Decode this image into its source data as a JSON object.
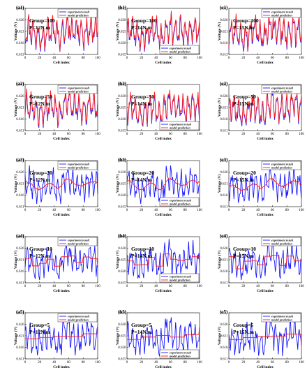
{
  "figure": {
    "colors": {
      "experiment": "#1515ff",
      "model": "#ff1a1a",
      "axis": "#000000"
    }
  },
  "chart_data": [
    {
      "id": "a1",
      "label": "(a1)",
      "type": "line",
      "group": "Group=100",
      "torque": "P=12N.m",
      "xlabel": "Cell index",
      "ylabel": "Voltage (V)",
      "xlim": [
        0,
        100
      ],
      "ylim": [
        0.613,
        0.631
      ],
      "yticks": [
        "0.613",
        "0.616",
        "0.621",
        "0.626",
        "0.631"
      ],
      "xticks": [
        "0",
        "20",
        "40",
        "60",
        "80",
        "100"
      ],
      "legend": [
        "experiment result",
        "model prediction"
      ],
      "legend_pos": "top-right",
      "model_style": "tracking",
      "seed": 11
    },
    {
      "id": "b1",
      "label": "(b1)",
      "type": "line",
      "group": "Group=100",
      "torque": "P=14N.m",
      "xlabel": "Cell index",
      "ylabel": "Voltage (V)",
      "xlim": [
        0,
        100
      ],
      "ylim": [
        0.615,
        0.635
      ],
      "yticks": [
        "0.615",
        "0.620",
        "0.625",
        "0.630",
        "0.635"
      ],
      "xticks": [
        "0",
        "20",
        "40",
        "60",
        "80",
        "100"
      ],
      "legend": [
        "experiment result",
        "model prediction"
      ],
      "legend_pos": "bottom-right",
      "model_style": "tracking",
      "seed": 23
    },
    {
      "id": "c1",
      "label": "(c1)",
      "type": "line",
      "group": "Group=100",
      "torque": "P=15N.m",
      "xlabel": "Cell index",
      "ylabel": "Voltage (V)",
      "xlim": [
        0,
        100
      ],
      "ylim": [
        0.613,
        0.631
      ],
      "yticks": [
        "0.613",
        "0.616",
        "0.621",
        "0.626",
        "0.631"
      ],
      "xticks": [
        "0",
        "20",
        "40",
        "60",
        "80",
        "100"
      ],
      "legend": [
        "experiment result",
        "model prediction"
      ],
      "legend_pos": "top-right",
      "model_style": "tracking",
      "seed": 37
    },
    {
      "id": "a2",
      "label": "(a2)",
      "type": "line",
      "group": "Group=50",
      "torque": "P=12N.m",
      "xlabel": "Cell index",
      "ylabel": "Voltage (V)",
      "xlim": [
        0,
        100
      ],
      "ylim": [
        0.611,
        0.631
      ],
      "yticks": [
        "0.611",
        "0.616",
        "0.621",
        "0.626",
        "0.631"
      ],
      "xticks": [
        "0",
        "20",
        "40",
        "60",
        "80",
        "100"
      ],
      "legend": [
        "experiment result",
        "model prediction"
      ],
      "legend_pos": "top-right",
      "model_style": "tracking",
      "seed": 41
    },
    {
      "id": "b2",
      "label": "(b2)",
      "type": "line",
      "group": "Group=50",
      "torque": "P=14N.m",
      "xlabel": "Cell index",
      "ylabel": "Voltage (V)",
      "xlim": [
        0,
        100
      ],
      "ylim": [
        0.615,
        0.635
      ],
      "yticks": [
        "0.615",
        "0.620",
        "0.625",
        "0.630",
        "0.635"
      ],
      "xticks": [
        "0",
        "20",
        "40",
        "60",
        "80",
        "100"
      ],
      "legend": [
        "experiment result",
        "model prediction"
      ],
      "legend_pos": "bottom-right",
      "model_style": "tracking",
      "seed": 53
    },
    {
      "id": "c2",
      "label": "(c2)",
      "type": "line",
      "group": "Group=50",
      "torque": "P=15N.m",
      "xlabel": "Cell index",
      "ylabel": "Voltage (V)",
      "xlim": [
        0,
        100
      ],
      "ylim": [
        0.611,
        0.631
      ],
      "yticks": [
        "0.611",
        "0.616",
        "0.621",
        "0.626",
        "0.631"
      ],
      "xticks": [
        "0",
        "20",
        "40",
        "60",
        "80",
        "100"
      ],
      "legend": [
        "experiment result",
        "model prediction"
      ],
      "legend_pos": "top-right",
      "model_style": "tracking",
      "seed": 67
    },
    {
      "id": "a3",
      "label": "(a3)",
      "type": "line",
      "group": "Group=20",
      "torque": "P=12N.m",
      "xlabel": "Cell index",
      "ylabel": "Voltage (V)",
      "xlim": [
        0,
        100
      ],
      "ylim": [
        0.611,
        0.631
      ],
      "yticks": [
        "0.611",
        "0.616",
        "0.621",
        "0.626",
        "0.631"
      ],
      "xticks": [
        "0",
        "20",
        "40",
        "60",
        "80",
        "100"
      ],
      "legend": [
        "experiment result",
        "model prediction"
      ],
      "legend_pos": "top-right",
      "model_style": "smooth",
      "seed": 71
    },
    {
      "id": "b3",
      "label": "(b3)",
      "type": "line",
      "group": "Group=20",
      "torque": "P=14N.m",
      "xlabel": "Cell index",
      "ylabel": "Voltage (V)",
      "xlim": [
        0,
        100
      ],
      "ylim": [
        0.615,
        0.635
      ],
      "yticks": [
        "0.615",
        "0.620",
        "0.625",
        "0.630",
        "0.635"
      ],
      "xticks": [
        "0",
        "20",
        "40",
        "60",
        "80",
        "100"
      ],
      "legend": [
        "experiment result",
        "model prediction"
      ],
      "legend_pos": "bottom-right",
      "model_style": "smooth",
      "seed": 83
    },
    {
      "id": "c3",
      "label": "(c3)",
      "type": "line",
      "group": "Group=20",
      "torque": "P=15N.m",
      "xlabel": "Cell index",
      "ylabel": "Voltage (V)",
      "xlim": [
        0,
        100
      ],
      "ylim": [
        0.611,
        0.631
      ],
      "yticks": [
        "0.611",
        "0.616",
        "0.621",
        "0.626",
        "0.631"
      ],
      "xticks": [
        "0",
        "20",
        "40",
        "60",
        "80",
        "100"
      ],
      "legend": [
        "experiment result",
        "model prediction"
      ],
      "legend_pos": "top-right",
      "model_style": "smooth",
      "seed": 97
    },
    {
      "id": "a4",
      "label": "(a4)",
      "type": "line",
      "group": "Group=10",
      "torque": "P=12N.m",
      "xlabel": "Cell index",
      "ylabel": "Voltage (V)",
      "xlim": [
        0,
        100
      ],
      "ylim": [
        0.611,
        0.631
      ],
      "yticks": [
        "0.611",
        "0.616",
        "0.621",
        "0.626",
        "0.631"
      ],
      "xticks": [
        "0",
        "20",
        "40",
        "60",
        "80",
        "100"
      ],
      "legend": [
        "experiment result",
        "model prediction"
      ],
      "legend_pos": "top-right",
      "model_style": "step10",
      "seed": 101
    },
    {
      "id": "b4",
      "label": "(b4)",
      "type": "line",
      "group": "Group=10",
      "torque": "P=14N.m",
      "xlabel": "Cell index",
      "ylabel": "Voltage (V)",
      "xlim": [
        0,
        100
      ],
      "ylim": [
        0.615,
        0.635
      ],
      "yticks": [
        "0.615",
        "0.620",
        "0.625",
        "0.630",
        "0.635"
      ],
      "xticks": [
        "0",
        "20",
        "40",
        "60",
        "80",
        "100"
      ],
      "legend": [
        "experiment result",
        "model prediction"
      ],
      "legend_pos": "bottom-right",
      "model_style": "step10",
      "seed": 113
    },
    {
      "id": "c4",
      "label": "(c4)",
      "type": "line",
      "group": "Group=10",
      "torque": "P=15N.m",
      "xlabel": "Cell index",
      "ylabel": "Voltage (V)",
      "xlim": [
        0,
        100
      ],
      "ylim": [
        0.611,
        0.631
      ],
      "yticks": [
        "0.611",
        "0.616",
        "0.621",
        "0.626",
        "0.631"
      ],
      "xticks": [
        "0",
        "20",
        "40",
        "60",
        "80",
        "100"
      ],
      "legend": [
        "experiment result",
        "model prediction"
      ],
      "legend_pos": "top-right",
      "model_style": "step10",
      "seed": 127
    },
    {
      "id": "a5",
      "label": "(a5)",
      "type": "line",
      "group": "Group=5",
      "torque": "P=12N.m",
      "xlabel": "Cell index",
      "ylabel": "Voltage (V)",
      "xlim": [
        0,
        100
      ],
      "ylim": [
        0.611,
        0.631
      ],
      "yticks": [
        "0.611",
        "0.616",
        "0.621",
        "0.626",
        "0.631"
      ],
      "xticks": [
        "0",
        "20",
        "40",
        "60",
        "80",
        "100"
      ],
      "legend": [
        "experiment result",
        "model prediction"
      ],
      "legend_pos": "top-right",
      "model_style": "step20",
      "seed": 131
    },
    {
      "id": "b5",
      "label": "(b5)",
      "type": "line",
      "group": "Group=5",
      "torque": "P=14N.m",
      "xlabel": "Cell index",
      "ylabel": "Voltage (V)",
      "xlim": [
        0,
        100
      ],
      "ylim": [
        0.615,
        0.635
      ],
      "yticks": [
        "0.615",
        "0.620",
        "0.625",
        "0.630",
        "0.635"
      ],
      "xticks": [
        "0",
        "20",
        "40",
        "60",
        "80",
        "100"
      ],
      "legend": [
        "experiment result",
        "model prediction"
      ],
      "legend_pos": "bottom-right",
      "model_style": "step20",
      "seed": 149
    },
    {
      "id": "c5",
      "label": "(c5)",
      "type": "line",
      "group": "Group=5",
      "torque": "P=15N.m",
      "xlabel": "Cell index",
      "ylabel": "Voltage (V)",
      "xlim": [
        0,
        100
      ],
      "ylim": [
        0.611,
        0.631
      ],
      "yticks": [
        "0.611",
        "0.616",
        "0.621",
        "0.626",
        "0.631"
      ],
      "xticks": [
        "0",
        "20",
        "40",
        "60",
        "80",
        "100"
      ],
      "legend": [
        "experiment result",
        "model prediction"
      ],
      "legend_pos": "top-right",
      "model_style": "step20",
      "seed": 157
    }
  ]
}
